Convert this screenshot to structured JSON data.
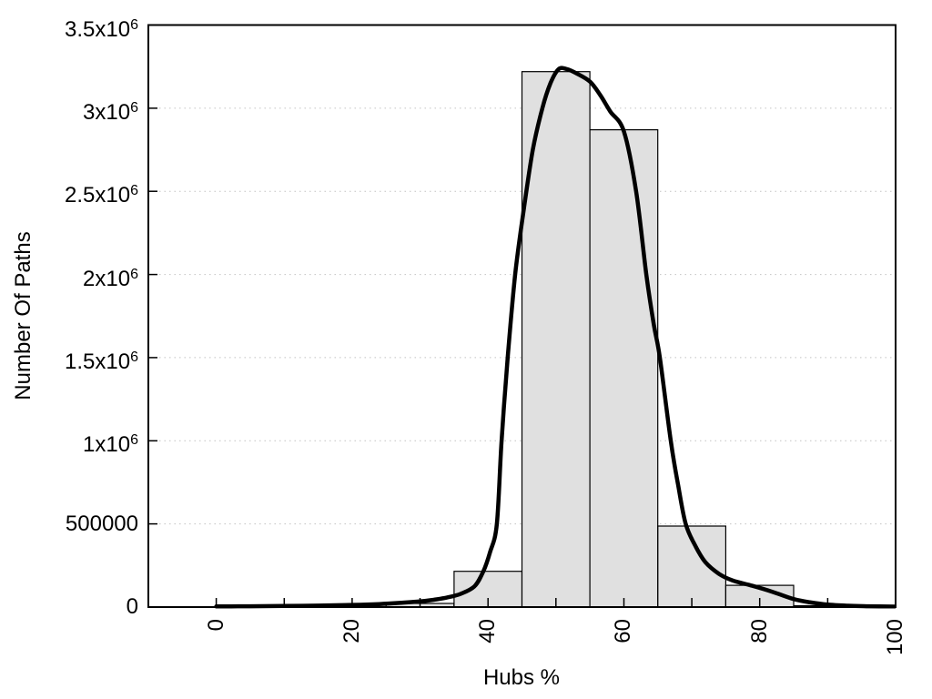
{
  "chart_data": {
    "type": "bar",
    "subtype": "histogram-with-fitted-curve",
    "title": "",
    "xlabel": "Hubs %",
    "ylabel": "Number Of Paths",
    "xlim": [
      -10,
      100
    ],
    "ylim": [
      0,
      3500000
    ],
    "grid": "horizontal-dotted",
    "legend": "none",
    "x_major_ticks": [
      0,
      20,
      40,
      60,
      80,
      100
    ],
    "x_major_tick_labels": [
      "0",
      "20",
      "40",
      "60",
      "80",
      "100"
    ],
    "x_minor_ticks": [
      10,
      30,
      50,
      70,
      90
    ],
    "x_tick_label_rotation": -90,
    "y_ticks": [
      {
        "value": 0,
        "label": "0",
        "grid": false
      },
      {
        "value": 500000,
        "label": "500000",
        "grid": true
      },
      {
        "value": 1000000,
        "label": "1x10^6",
        "grid": true
      },
      {
        "value": 1500000,
        "label": "1.5x10^6",
        "grid": true
      },
      {
        "value": 2000000,
        "label": "2x10^6",
        "grid": true
      },
      {
        "value": 2500000,
        "label": "2.5x10^6",
        "grid": true
      },
      {
        "value": 3000000,
        "label": "3x10^6",
        "grid": true
      },
      {
        "value": 3500000,
        "label": "3.5x10^6",
        "grid": false
      }
    ],
    "bars": [
      {
        "x0": 15,
        "x1": 25,
        "value": 3000
      },
      {
        "x0": 25,
        "x1": 35,
        "value": 22000
      },
      {
        "x0": 35,
        "x1": 45,
        "value": 215000
      },
      {
        "x0": 45,
        "x1": 55,
        "value": 3220000
      },
      {
        "x0": 55,
        "x1": 65,
        "value": 2870000
      },
      {
        "x0": 65,
        "x1": 75,
        "value": 487000
      },
      {
        "x0": 75,
        "x1": 85,
        "value": 131000
      },
      {
        "x0": 85,
        "x1": 95,
        "value": 8000
      }
    ],
    "curve": [
      [
        0,
        4000
      ],
      [
        5,
        5000
      ],
      [
        10,
        6500
      ],
      [
        15,
        9000
      ],
      [
        20,
        13000
      ],
      [
        24,
        18000
      ],
      [
        27,
        25000
      ],
      [
        30,
        34000
      ],
      [
        32,
        44000
      ],
      [
        34,
        58000
      ],
      [
        36,
        80000
      ],
      [
        38,
        125000
      ],
      [
        39.3,
        214000
      ],
      [
        40.3,
        330000
      ],
      [
        41.3,
        500000
      ],
      [
        42,
        1000000
      ],
      [
        42.9,
        1500000
      ],
      [
        44,
        2000000
      ],
      [
        45.3,
        2400000
      ],
      [
        46.6,
        2750000
      ],
      [
        48,
        3000000
      ],
      [
        49.2,
        3150000
      ],
      [
        50.4,
        3235000
      ],
      [
        51.6,
        3235000
      ],
      [
        53,
        3210000
      ],
      [
        55,
        3160000
      ],
      [
        56.5,
        3080000
      ],
      [
        58,
        2980000
      ],
      [
        60,
        2860000
      ],
      [
        61.8,
        2500000
      ],
      [
        63.3,
        2000000
      ],
      [
        64.4,
        1700000
      ],
      [
        65.3,
        1500000
      ],
      [
        66.9,
        1000000
      ],
      [
        68,
        730000
      ],
      [
        69.1,
        500000
      ],
      [
        70.5,
        370000
      ],
      [
        72,
        270000
      ],
      [
        74,
        200000
      ],
      [
        76,
        160000
      ],
      [
        78.9,
        128000
      ],
      [
        82,
        90000
      ],
      [
        85,
        48000
      ],
      [
        87.5,
        28000
      ],
      [
        90,
        15000
      ],
      [
        93,
        8000
      ],
      [
        96,
        5000
      ],
      [
        100,
        3000
      ]
    ],
    "colors": {
      "background": "#ffffff",
      "bar_fill": "#e0e0e0",
      "bar_border": "#000000",
      "curve": "#000000",
      "grid": "#c2c2c2",
      "axis": "#000000",
      "text": "#000000"
    }
  }
}
